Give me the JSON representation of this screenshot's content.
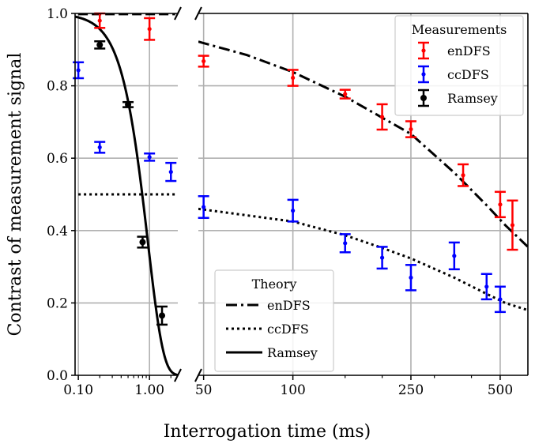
{
  "chart_data": {
    "type": "scatter",
    "xlabel": "Interrogation time (ms)",
    "ylabel": "Contrast of measurement signal",
    "ylim": [
      0,
      1
    ],
    "yticks": [
      "0.0",
      "0.2",
      "0.4",
      "0.6",
      "0.8",
      "1.0"
    ],
    "yticks_values": [
      0,
      0.2,
      0.4,
      0.6,
      0.8,
      1.0
    ],
    "grid": true,
    "panels": [
      {
        "name": "left",
        "xscale": "log",
        "xlim": [
          0.09,
          2.5
        ],
        "xticks": [
          "0.10",
          "1.00"
        ],
        "xticks_values": [
          0.1,
          1.0
        ],
        "xminor_gridlines": [
          0.2,
          0.3,
          0.4,
          0.5,
          0.6,
          0.7,
          0.8,
          0.9,
          2.0
        ]
      },
      {
        "name": "right",
        "xscale": "log",
        "xlim": [
          48,
          620
        ],
        "xticks": [
          "50",
          "100",
          "250",
          "500"
        ],
        "xticks_values": [
          50,
          100,
          250,
          500
        ],
        "xminor_gridlines": [
          150,
          200,
          300,
          400
        ]
      }
    ],
    "series": [
      {
        "name": "enDFS",
        "kind": "measurement",
        "color": "#ff0000",
        "marker": "small-dot",
        "panel": "left",
        "points": [
          {
            "x": 0.2,
            "y": 0.98,
            "err": 0.02
          },
          {
            "x": 1.0,
            "y": 0.957,
            "err": 0.03
          }
        ]
      },
      {
        "name": "ccDFS",
        "kind": "measurement",
        "color": "#0000ff",
        "marker": "small-dot",
        "panel": "left",
        "points": [
          {
            "x": 0.1,
            "y": 0.843,
            "err": 0.022
          },
          {
            "x": 0.2,
            "y": 0.63,
            "err": 0.015
          },
          {
            "x": 1.0,
            "y": 0.603,
            "err": 0.01
          },
          {
            "x": 2.0,
            "y": 0.562,
            "err": 0.025
          }
        ]
      },
      {
        "name": "Ramsey",
        "kind": "measurement",
        "color": "#000000",
        "marker": "dot",
        "panel": "left",
        "points": [
          {
            "x": 0.2,
            "y": 0.913,
            "err": 0.01
          },
          {
            "x": 0.5,
            "y": 0.748,
            "err": 0.007
          },
          {
            "x": 0.8,
            "y": 0.368,
            "err": 0.015
          },
          {
            "x": 1.5,
            "y": 0.165,
            "err": 0.025
          }
        ]
      },
      {
        "name": "enDFS",
        "kind": "measurement",
        "color": "#ff0000",
        "marker": "small-dot",
        "panel": "right",
        "points": [
          {
            "x": 50,
            "y": 0.868,
            "err": 0.015
          },
          {
            "x": 100,
            "y": 0.822,
            "err": 0.022
          },
          {
            "x": 150,
            "y": 0.777,
            "err": 0.012
          },
          {
            "x": 200,
            "y": 0.714,
            "err": 0.035
          },
          {
            "x": 250,
            "y": 0.68,
            "err": 0.022
          },
          {
            "x": 375,
            "y": 0.553,
            "err": 0.03
          },
          {
            "x": 500,
            "y": 0.472,
            "err": 0.035
          },
          {
            "x": 550,
            "y": 0.415,
            "err": 0.068
          }
        ]
      },
      {
        "name": "ccDFS",
        "kind": "measurement",
        "color": "#0000ff",
        "marker": "small-dot",
        "panel": "right",
        "points": [
          {
            "x": 50,
            "y": 0.465,
            "err": 0.03
          },
          {
            "x": 100,
            "y": 0.455,
            "err": 0.03
          },
          {
            "x": 150,
            "y": 0.365,
            "err": 0.025
          },
          {
            "x": 200,
            "y": 0.325,
            "err": 0.03
          },
          {
            "x": 250,
            "y": 0.27,
            "err": 0.035
          },
          {
            "x": 350,
            "y": 0.33,
            "err": 0.037
          },
          {
            "x": 450,
            "y": 0.245,
            "err": 0.035
          },
          {
            "x": 500,
            "y": 0.21,
            "err": 0.035
          }
        ]
      },
      {
        "name": "enDFS",
        "kind": "theory",
        "dash": "dash-dot",
        "panel": "right",
        "points": [
          [
            48,
            0.922
          ],
          [
            70,
            0.885
          ],
          [
            100,
            0.838
          ],
          [
            150,
            0.77
          ],
          [
            200,
            0.712
          ],
          [
            250,
            0.667
          ],
          [
            350,
            0.56
          ],
          [
            450,
            0.47
          ],
          [
            520,
            0.415
          ],
          [
            620,
            0.355
          ]
        ]
      },
      {
        "name": "ccDFS",
        "kind": "theory",
        "dash": "dotted",
        "panel": "right",
        "points": [
          [
            48,
            0.46
          ],
          [
            100,
            0.425
          ],
          [
            150,
            0.387
          ],
          [
            200,
            0.352
          ],
          [
            250,
            0.323
          ],
          [
            350,
            0.27
          ],
          [
            450,
            0.225
          ],
          [
            520,
            0.2
          ],
          [
            620,
            0.18
          ]
        ]
      },
      {
        "name": "ccDFS",
        "kind": "theory",
        "dash": "dotted",
        "panel": "left",
        "points": [
          [
            0.1,
            0.5
          ],
          [
            2.3,
            0.5
          ]
        ]
      },
      {
        "name": "enDFS",
        "kind": "theory",
        "dash": "dashed",
        "panel": "left",
        "points": [
          [
            0.1,
            0.998
          ],
          [
            2.3,
            0.998
          ]
        ]
      },
      {
        "name": "Ramsey",
        "kind": "theory",
        "dash": "solid",
        "panel": "left",
        "function": "exp(-(x/0.95)^2)"
      }
    ],
    "legends": [
      {
        "title": "Measurements",
        "placement": "top-right",
        "entries": [
          {
            "label": "enDFS",
            "color": "#ff0000"
          },
          {
            "label": "ccDFS",
            "color": "#0000ff"
          },
          {
            "label": "Ramsey",
            "color": "#000000"
          }
        ]
      },
      {
        "title": "Theory",
        "placement": "lower-center",
        "entries": [
          {
            "label": "enDFS",
            "dash": "dash-dot"
          },
          {
            "label": "ccDFS",
            "dash": "dotted"
          },
          {
            "label": "Ramsey",
            "dash": "solid"
          }
        ]
      }
    ]
  }
}
